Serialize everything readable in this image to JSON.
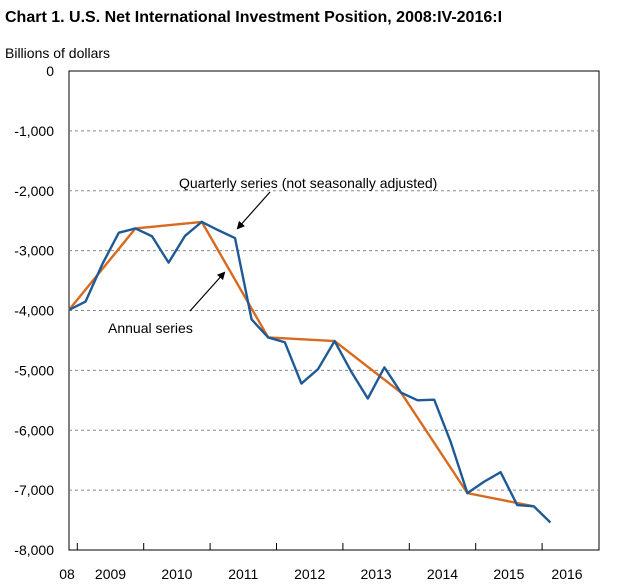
{
  "chart_data": {
    "type": "line",
    "title": "Chart 1. U.S. Net International Investment Position, 2008:IV-2016:I",
    "ylabel": "Billions of dollars",
    "xlabel": "",
    "ylim": [
      -8000,
      0
    ],
    "yticks": [
      0,
      -1000,
      -2000,
      -3000,
      -4000,
      -5000,
      -6000,
      -7000,
      -8000
    ],
    "ytick_labels": [
      "0",
      "-1,000",
      "-2,000",
      "-3,000",
      "-4,000",
      "-5,000",
      "-6,000",
      "-7,000",
      "-8,000"
    ],
    "x_category_labels": [
      "08",
      "2009",
      "2010",
      "2011",
      "2012",
      "2013",
      "2014",
      "2015",
      "2016"
    ],
    "grid": "horizontal dashed",
    "series": [
      {
        "name": "Quarterly series (not seasonally adjusted)",
        "color": "#1F5A96",
        "x": [
          "2008:IV",
          "2009:I",
          "2009:II",
          "2009:III",
          "2009:IV",
          "2010:I",
          "2010:II",
          "2010:III",
          "2010:IV",
          "2011:I",
          "2011:II",
          "2011:III",
          "2011:IV",
          "2012:I",
          "2012:II",
          "2012:III",
          "2012:IV",
          "2013:I",
          "2013:II",
          "2013:III",
          "2013:IV",
          "2014:I",
          "2014:II",
          "2014:III",
          "2014:IV",
          "2015:I",
          "2015:II",
          "2015:III",
          "2015:IV",
          "2016:I"
        ],
        "values": [
          -3990,
          -3850,
          -3230,
          -2700,
          -2630,
          -2760,
          -3200,
          -2750,
          -2520,
          -2660,
          -2790,
          -4150,
          -4450,
          -4530,
          -5220,
          -4980,
          -4510,
          -5020,
          -5470,
          -4950,
          -5370,
          -5500,
          -5490,
          -6200,
          -7050,
          -6860,
          -6700,
          -7250,
          -7270,
          -7540
        ]
      },
      {
        "name": "Annual series",
        "color": "#D86A20",
        "x": [
          "2008",
          "2009",
          "2010",
          "2011",
          "2012",
          "2013",
          "2014",
          "2015"
        ],
        "values": [
          -3990,
          -2630,
          -2520,
          -4450,
          -4510,
          -5370,
          -7050,
          -7270
        ]
      }
    ],
    "annotations": [
      {
        "text": "Quarterly series (not seasonally adjusted)"
      },
      {
        "text": "Annual series"
      }
    ]
  }
}
